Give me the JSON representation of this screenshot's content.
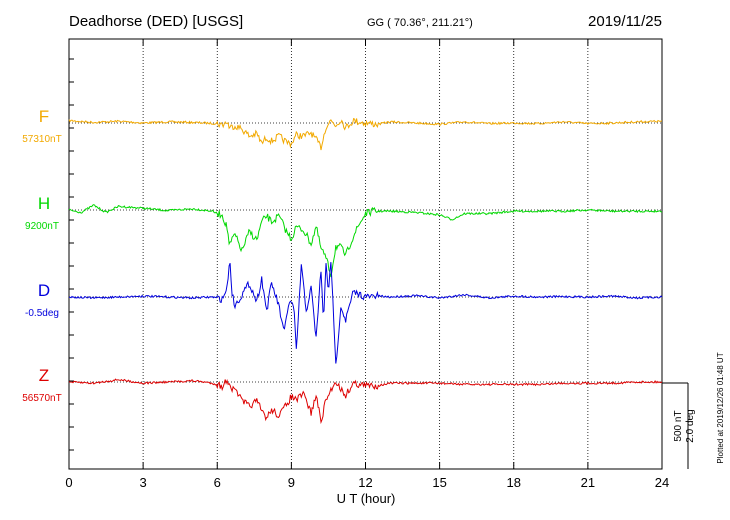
{
  "header": {
    "station": "Deadhorse (DED)  [USGS]",
    "coords": "GG ( 70.36°, 211.21°)",
    "date": "2019/11/25"
  },
  "side_note": "Plotted at 2019/12/26 01:48 UT",
  "scale": {
    "nt": "500 nT",
    "deg": "2.0 deg"
  },
  "chart_data": {
    "type": "line",
    "xlabel": "U T (hour)",
    "xlim": [
      0,
      24
    ],
    "xticks": [
      "0",
      "3",
      "6",
      "9",
      "12",
      "15",
      "18",
      "21",
      "24"
    ],
    "grid": "vertical dotted every 3 h",
    "colors": {
      "F": "#f2a900",
      "H": "#00d800",
      "D": "#0000dd",
      "Z": "#dd0000"
    },
    "series": [
      {
        "name": "F",
        "baseline": "57310nT",
        "x": [
          0,
          1,
          2,
          3,
          4,
          5,
          5.5,
          6,
          6.2,
          6.4,
          6.5,
          6.7,
          7,
          7.3,
          7.6,
          7.8,
          8,
          8.2,
          8.5,
          8.8,
          9,
          9.2,
          9.5,
          9.8,
          10,
          10.2,
          10.4,
          10.6,
          10.8,
          11,
          11.2,
          11.5,
          12,
          12.5,
          13,
          14,
          15,
          16,
          17,
          18,
          19,
          20,
          21,
          22,
          23,
          24
        ],
        "y": [
          20,
          5,
          15,
          0,
          10,
          5,
          0,
          -5,
          -15,
          10,
          -40,
          -20,
          -50,
          -110,
          -90,
          -170,
          -120,
          -150,
          -110,
          -160,
          -170,
          -100,
          -110,
          -80,
          -140,
          -200,
          -30,
          20,
          -20,
          30,
          -40,
          20,
          0,
          -10,
          10,
          0,
          -10,
          10,
          -5,
          0,
          -5,
          10,
          -5,
          0,
          10,
          15
        ]
      },
      {
        "name": "H",
        "baseline": "9200nT",
        "x": [
          0,
          0.5,
          1,
          1.5,
          2,
          3,
          4,
          5,
          5.8,
          6,
          6.2,
          6.4,
          6.5,
          6.7,
          7,
          7.3,
          7.6,
          7.8,
          8,
          8.2,
          8.5,
          8.8,
          9,
          9.2,
          9.5,
          9.8,
          10,
          10.2,
          10.4,
          10.6,
          10.8,
          11,
          11.2,
          11.5,
          11.8,
          12,
          12.3,
          13,
          14,
          15,
          15.5,
          16,
          17,
          18,
          19,
          20,
          21,
          22,
          23,
          24
        ],
        "y": [
          0,
          -20,
          40,
          -20,
          30,
          15,
          -5,
          10,
          -10,
          -30,
          -40,
          -150,
          -300,
          -200,
          -340,
          -180,
          -250,
          -100,
          -50,
          -100,
          -50,
          -180,
          -240,
          -140,
          -170,
          -280,
          -140,
          -320,
          -400,
          -540,
          -300,
          -310,
          -380,
          -220,
          -100,
          -30,
          -10,
          -10,
          -20,
          -40,
          -80,
          -30,
          -30,
          -10,
          -10,
          -10,
          0,
          -10,
          -10,
          -10
        ]
      },
      {
        "name": "D",
        "baseline": "-0.5deg",
        "x": [
          0,
          1,
          2,
          3,
          4,
          5,
          5.8,
          6.2,
          6.4,
          6.5,
          6.6,
          6.7,
          7,
          7.3,
          7.6,
          7.8,
          8,
          8.2,
          8.5,
          8.7,
          8.9,
          9.1,
          9.2,
          9.4,
          9.6,
          9.8,
          10,
          10.2,
          10.3,
          10.4,
          10.5,
          10.6,
          10.7,
          10.8,
          11,
          11.2,
          11.5,
          11.8,
          12,
          12.5,
          13,
          14,
          15,
          16,
          17,
          18,
          19,
          20,
          21,
          22,
          23,
          24
        ],
        "y": [
          0,
          -0.02,
          0,
          0.02,
          0,
          -0.02,
          0,
          -0.05,
          0.2,
          0.85,
          0.1,
          -0.2,
          0.05,
          0.3,
          -0.1,
          0.4,
          -0.3,
          0.3,
          -0.2,
          -0.8,
          -0.1,
          -0.2,
          -1.2,
          0.7,
          -0.3,
          0.2,
          -0.9,
          0.6,
          -0.6,
          0.75,
          0.15,
          0.7,
          -0.3,
          -1.5,
          -0.2,
          -0.5,
          0.1,
          0.05,
          0,
          0.02,
          0,
          0.03,
          -0.02,
          0.05,
          -0.02,
          0.02,
          0,
          0.01,
          0,
          0.02,
          -0.02,
          0
        ]
      },
      {
        "name": "Z",
        "baseline": "56570nT",
        "x": [
          0,
          1,
          2,
          3,
          4,
          5,
          5.5,
          6,
          6.2,
          6.4,
          6.5,
          6.6,
          6.8,
          7,
          7.3,
          7.6,
          7.8,
          8,
          8.2,
          8.5,
          8.8,
          9,
          9.2,
          9.5,
          9.8,
          10,
          10.2,
          10.4,
          10.6,
          10.8,
          11,
          11.2,
          11.5,
          12,
          12.5,
          13,
          14,
          15,
          16,
          17,
          18,
          19,
          20,
          21,
          22,
          23,
          24
        ],
        "y": [
          0,
          -10,
          20,
          -10,
          0,
          10,
          0,
          -20,
          -40,
          20,
          -10,
          -60,
          -80,
          -160,
          -200,
          -160,
          -240,
          -300,
          -230,
          -280,
          -190,
          -120,
          -150,
          -100,
          -260,
          -110,
          -330,
          -150,
          -70,
          10,
          -60,
          -110,
          -10,
          -30,
          -30,
          -10,
          -10,
          -10,
          -20,
          -20,
          -20,
          -20,
          -10,
          -10,
          -10,
          0,
          0
        ]
      }
    ]
  }
}
